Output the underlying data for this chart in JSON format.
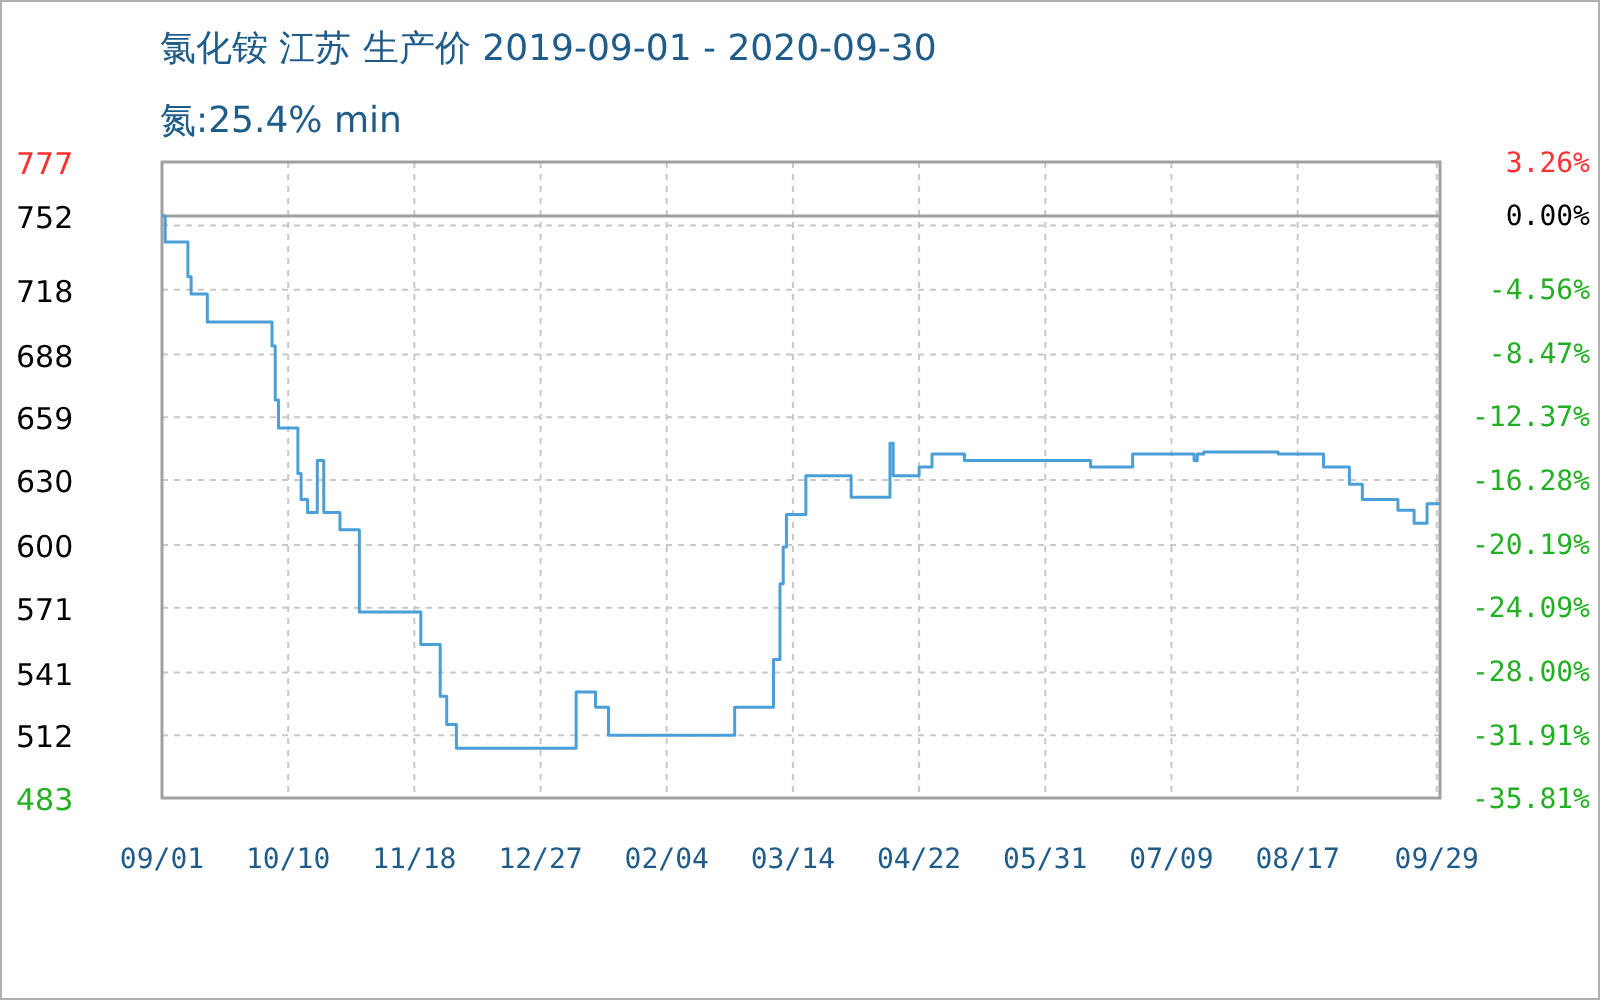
{
  "chart_data": {
    "type": "step",
    "title": "氯化铵 江苏 生产价 2019-09-01 - 2020-09-30",
    "subtitle": "氮:25.4% min",
    "x": [
      "2019-09-01",
      "2019-09-02",
      "2019-09-09",
      "2019-09-10",
      "2019-09-15",
      "2019-10-05",
      "2019-10-06",
      "2019-10-07",
      "2019-10-13",
      "2019-10-14",
      "2019-10-16",
      "2019-10-19",
      "2019-10-21",
      "2019-10-26",
      "2019-11-01",
      "2019-11-20",
      "2019-11-26",
      "2019-11-28",
      "2019-12-01",
      "2020-01-07",
      "2020-01-13",
      "2020-01-17",
      "2020-02-25",
      "2020-03-08",
      "2020-03-10",
      "2020-03-11",
      "2020-03-12",
      "2020-03-18",
      "2020-04-01",
      "2020-04-13",
      "2020-04-14",
      "2020-04-22",
      "2020-04-26",
      "2020-05-06",
      "2020-06-14",
      "2020-06-27",
      "2020-07-16",
      "2020-07-17",
      "2020-07-19",
      "2020-08-11",
      "2020-08-25",
      "2020-09-02",
      "2020-09-06",
      "2020-09-17",
      "2020-09-22",
      "2020-09-26",
      "2020-09-30"
    ],
    "series": [
      {
        "color": "#4a9fd8",
        "values": [
          752,
          740,
          724,
          716,
          703,
          692,
          667,
          654,
          633,
          621,
          615,
          639,
          615,
          607,
          569,
          554,
          530,
          517,
          506,
          532,
          525,
          512,
          525,
          547,
          582,
          599,
          614,
          632,
          622,
          647,
          632,
          636,
          642,
          639,
          636,
          642,
          639,
          642,
          643,
          642,
          636,
          628,
          621,
          616,
          610,
          619,
          619
        ]
      }
    ],
    "xlim": [
      "2019-09-01",
      "2020-09-30"
    ],
    "xticks": [
      {
        "value": "2019-09-01",
        "label": "09/01"
      },
      {
        "value": "2019-10-10",
        "label": "10/10"
      },
      {
        "value": "2019-11-18",
        "label": "11/18"
      },
      {
        "value": "2019-12-27",
        "label": "12/27"
      },
      {
        "value": "2020-02-04",
        "label": "02/04"
      },
      {
        "value": "2020-03-14",
        "label": "03/14"
      },
      {
        "value": "2020-04-22",
        "label": "04/22"
      },
      {
        "value": "2020-05-31",
        "label": "05/31"
      },
      {
        "value": "2020-07-09",
        "label": "07/09"
      },
      {
        "value": "2020-08-17",
        "label": "08/17"
      },
      {
        "value": "2020-09-29",
        "label": "09/29"
      }
    ],
    "ylim": [
      483,
      777
    ],
    "yticks": [
      483,
      512,
      541,
      571,
      600,
      630,
      659,
      688,
      718,
      {
        "value": 747.6,
        "label": null
      },
      777
    ],
    "y2lim": [
      -35.81,
      3.26
    ],
    "y2ticks": [
      {
        "value": 3.26,
        "label": "3.26%"
      },
      {
        "value": 0,
        "label": "0.00%"
      },
      {
        "value": -4.56,
        "label": "-4.56%"
      },
      {
        "value": -8.47,
        "label": "-8.47%"
      },
      {
        "value": -12.37,
        "label": "-12.37%"
      },
      {
        "value": -16.28,
        "label": "-16.28%"
      },
      {
        "value": -20.19,
        "label": "-20.19%"
      },
      {
        "value": -24.09,
        "label": "-24.09%"
      },
      {
        "value": -28.0,
        "label": "-28.00%"
      },
      {
        "value": -31.91,
        "label": "-31.91%"
      },
      {
        "value": -35.81,
        "label": "-35.81%"
      }
    ],
    "ref_lines": [
      {
        "axis": "y",
        "value": 752,
        "label": "752",
        "color": "#a0a0a0"
      }
    ],
    "grid": true,
    "marker": "none",
    "line_style": "solid"
  }
}
